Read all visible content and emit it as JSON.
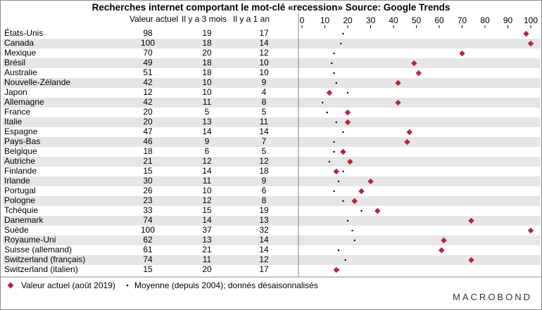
{
  "chart_data": {
    "type": "table",
    "title": "Recherches internet comportant le mot-clé «recession» Source: Google Trends",
    "columns": [
      "",
      "Valeur actuel",
      "Il y a 3 mois",
      "Il y a 1 an"
    ],
    "x_ticks": [
      0,
      10,
      20,
      30,
      40,
      50,
      60,
      70,
      80,
      90,
      100
    ],
    "xlim": [
      0,
      100
    ],
    "grid": false,
    "rows": [
      {
        "country": "États-Unis",
        "actuel": 98,
        "m3": 19,
        "y1": 17,
        "moyenne": 18
      },
      {
        "country": "Canada",
        "actuel": 100,
        "m3": 18,
        "y1": 14,
        "moyenne": 17
      },
      {
        "country": "Mexique",
        "actuel": 70,
        "m3": 20,
        "y1": 12,
        "moyenne": 14
      },
      {
        "country": "Brésil",
        "actuel": 49,
        "m3": 18,
        "y1": 10,
        "moyenne": 13
      },
      {
        "country": "Australie",
        "actuel": 51,
        "m3": 18,
        "y1": 10,
        "moyenne": 14
      },
      {
        "country": "Nouvelle-Zélande",
        "actuel": 42,
        "m3": 10,
        "y1": 9,
        "moyenne": 15
      },
      {
        "country": "Japon",
        "actuel": 12,
        "m3": 10,
        "y1": 4,
        "moyenne": 20
      },
      {
        "country": "Allemagne",
        "actuel": 42,
        "m3": 11,
        "y1": 8,
        "moyenne": 9
      },
      {
        "country": "France",
        "actuel": 20,
        "m3": 5,
        "y1": 5,
        "moyenne": 11
      },
      {
        "country": "Italie",
        "actuel": 20,
        "m3": 13,
        "y1": 11,
        "moyenne": 15
      },
      {
        "country": "Espagne",
        "actuel": 47,
        "m3": 14,
        "y1": 14,
        "moyenne": 18
      },
      {
        "country": "Pays-Bas",
        "actuel": 46,
        "m3": 9,
        "y1": 7,
        "moyenne": 14
      },
      {
        "country": "Belgique",
        "actuel": 18,
        "m3": 6,
        "y1": 5,
        "moyenne": 14
      },
      {
        "country": "Autriche",
        "actuel": 21,
        "m3": 12,
        "y1": 12,
        "moyenne": 12
      },
      {
        "country": "Finlande",
        "actuel": 15,
        "m3": 14,
        "y1": 18,
        "moyenne": 18
      },
      {
        "country": "Irlande",
        "actuel": 30,
        "m3": 11,
        "y1": 9,
        "moyenne": 16
      },
      {
        "country": "Portugal",
        "actuel": 26,
        "m3": 10,
        "y1": 6,
        "moyenne": 14
      },
      {
        "country": "Pologne",
        "actuel": 23,
        "m3": 12,
        "y1": 8,
        "moyenne": 18
      },
      {
        "country": "Tchéquie",
        "actuel": 33,
        "m3": 15,
        "y1": 19,
        "moyenne": 26
      },
      {
        "country": "Danemark",
        "actuel": 74,
        "m3": 14,
        "y1": 13,
        "moyenne": 20
      },
      {
        "country": "Suède",
        "actuel": 100,
        "m3": 37,
        "y1": 32,
        "moyenne": 22
      },
      {
        "country": "Royaume-Uni",
        "actuel": 62,
        "m3": 13,
        "y1": 14,
        "moyenne": 23
      },
      {
        "country": "Suisse (allemand)",
        "actuel": 61,
        "m3": 21,
        "y1": 14,
        "moyenne": 16
      },
      {
        "country": "Switzerland (français)",
        "actuel": 74,
        "m3": 11,
        "y1": 12,
        "moyenne": 19
      },
      {
        "country": "Switzerland (italien)",
        "actuel": 15,
        "m3": 20,
        "y1": 17,
        "moyenne": 16
      }
    ],
    "legend": {
      "actuel": "Valeur actuel (août 2019)",
      "moyenne": "Moyenne (depuis 2004); donnés désaisonnalisés"
    },
    "colors": {
      "actuel": "#b5243f",
      "moyenne": "#000000",
      "shade": "#e6e6e6"
    }
  },
  "logo": "MACROBOND"
}
